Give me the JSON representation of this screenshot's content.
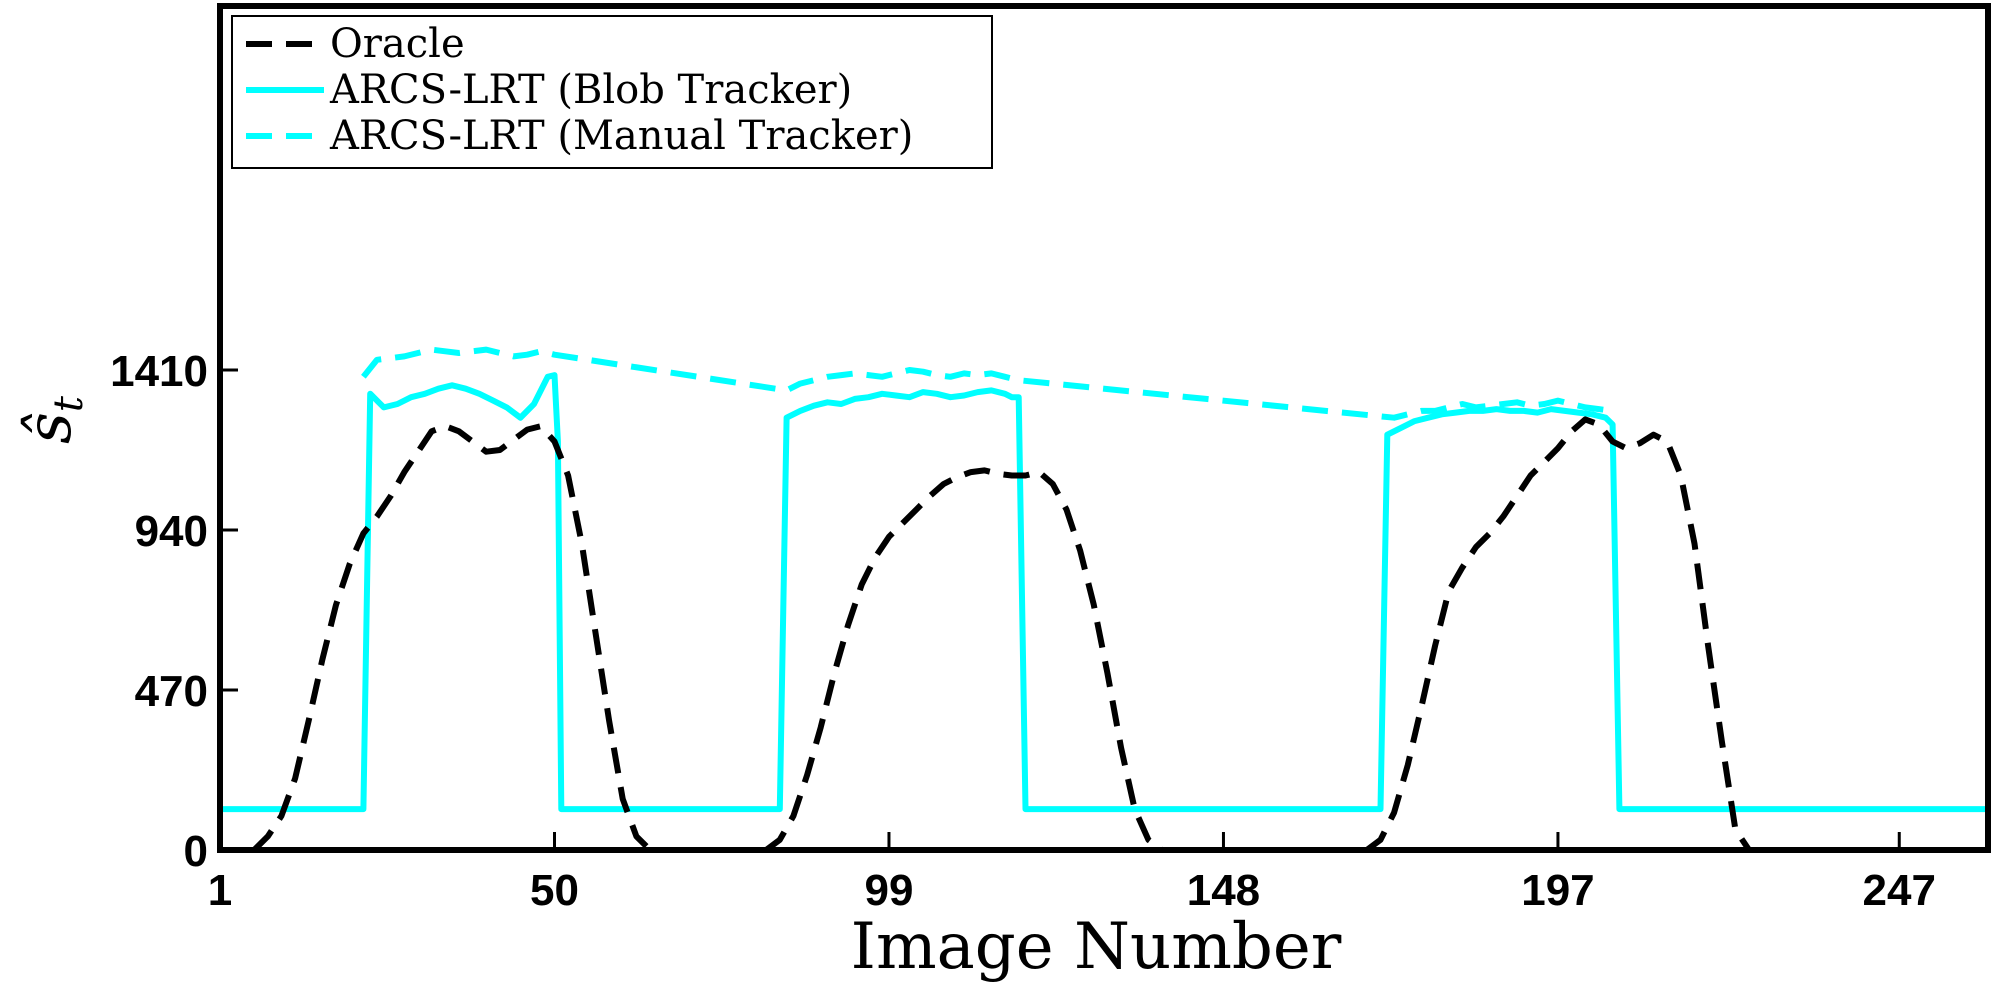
{
  "chart_data": {
    "type": "line",
    "xlabel": "Image Number",
    "ylabel_main": "ŝ",
    "ylabel_sub": "t",
    "xlim": [
      1,
      260
    ],
    "ylim": [
      0,
      1410
    ],
    "x_ticks": [
      1,
      50,
      99,
      148,
      197,
      247
    ],
    "y_ticks": [
      0,
      470,
      940,
      1410
    ],
    "grid": false,
    "legend_position": "top-left",
    "colors": {
      "oracle": "#000000",
      "arcs": "#00FFFF",
      "axis": "#000000"
    },
    "series": [
      {
        "name": "Oracle",
        "style": "dashed",
        "color": "#000000",
        "x": [
          6,
          8,
          10,
          12,
          14,
          16,
          18,
          20,
          22,
          24,
          26,
          28,
          30,
          32,
          34,
          36,
          38,
          40,
          42,
          44,
          46,
          48,
          50,
          52,
          54,
          56,
          58,
          60,
          62,
          64
        ],
        "y": [
          0,
          40,
          100,
          210,
          380,
          560,
          720,
          840,
          930,
          980,
          1040,
          1110,
          1170,
          1230,
          1245,
          1230,
          1200,
          1170,
          1175,
          1205,
          1235,
          1245,
          1200,
          1100,
          900,
          640,
          380,
          150,
          40,
          0
        ]
      },
      {
        "name": "",
        "style": "dashed",
        "color": "#000000",
        "x": [
          81,
          83,
          85,
          87,
          89,
          91,
          93,
          95,
          97,
          99,
          101,
          103,
          105,
          107,
          109,
          111,
          113,
          115,
          117,
          119,
          121,
          123,
          125,
          127,
          129,
          131,
          133,
          135,
          137,
          139
        ],
        "y": [
          0,
          30,
          100,
          220,
          360,
          520,
          660,
          780,
          860,
          920,
          960,
          1000,
          1040,
          1075,
          1095,
          1110,
          1115,
          1105,
          1100,
          1100,
          1110,
          1075,
          1000,
          880,
          720,
          520,
          300,
          120,
          30,
          0
        ]
      },
      {
        "name": "",
        "style": "dashed",
        "color": "#000000",
        "x": [
          169,
          171,
          173,
          175,
          177,
          179,
          181,
          183,
          185,
          187,
          189,
          191,
          193,
          195,
          197,
          199,
          201,
          203,
          205,
          207,
          209,
          211,
          213,
          215,
          217,
          219,
          221,
          223,
          225
        ],
        "y": [
          0,
          30,
          110,
          250,
          420,
          600,
          760,
          830,
          890,
          930,
          980,
          1040,
          1100,
          1140,
          1180,
          1230,
          1265,
          1250,
          1200,
          1180,
          1195,
          1220,
          1200,
          1100,
          900,
          600,
          320,
          60,
          0
        ]
      },
      {
        "name": "ARCS-LRT (Blob Tracker)",
        "style": "solid",
        "color": "#00FFFF",
        "x": [
          1,
          22,
          23,
          25,
          27,
          29,
          31,
          33,
          35,
          37,
          39,
          41,
          43,
          45,
          47,
          49,
          50,
          50.5,
          51,
          83,
          84,
          86,
          88,
          90,
          92,
          94,
          96,
          98,
          100,
          102,
          104,
          106,
          108,
          110,
          112,
          114,
          116,
          117,
          118,
          119,
          171,
          172,
          174,
          176,
          178,
          180,
          182,
          184,
          186,
          188,
          190,
          192,
          194,
          196,
          198,
          200,
          202,
          204,
          205,
          206,
          260
        ],
        "y": [
          120,
          120,
          1340,
          1300,
          1310,
          1330,
          1340,
          1355,
          1365,
          1355,
          1340,
          1320,
          1300,
          1270,
          1310,
          1390,
          1395,
          1200,
          120,
          120,
          1270,
          1290,
          1305,
          1315,
          1310,
          1325,
          1330,
          1340,
          1335,
          1330,
          1345,
          1340,
          1330,
          1335,
          1345,
          1350,
          1340,
          1330,
          1330,
          120,
          120,
          1220,
          1240,
          1260,
          1270,
          1280,
          1285,
          1290,
          1290,
          1295,
          1290,
          1290,
          1285,
          1295,
          1290,
          1285,
          1280,
          1270,
          1250,
          120,
          120
        ]
      },
      {
        "name": "ARCS-LRT (Manual Tracker)",
        "style": "dashed",
        "color": "#00FFFF",
        "x": [
          22,
          24,
          26,
          28,
          30,
          32,
          34,
          36,
          38,
          40,
          42,
          44,
          46,
          48,
          50,
          84,
          86,
          88,
          90,
          92,
          94,
          96,
          98,
          100,
          102,
          104,
          106,
          108,
          110,
          112,
          114,
          116,
          118,
          173,
          175,
          177,
          179,
          181,
          183,
          185,
          187,
          189,
          191,
          193,
          195,
          197,
          199,
          201,
          203,
          205
        ],
        "y": [
          1390,
          1440,
          1445,
          1450,
          1460,
          1470,
          1465,
          1460,
          1465,
          1470,
          1460,
          1450,
          1455,
          1465,
          1455,
          1350,
          1370,
          1380,
          1390,
          1395,
          1400,
          1395,
          1390,
          1400,
          1410,
          1405,
          1395,
          1390,
          1400,
          1395,
          1400,
          1390,
          1380,
          1270,
          1280,
          1290,
          1290,
          1300,
          1310,
          1300,
          1305,
          1310,
          1315,
          1305,
          1310,
          1320,
          1310,
          1300,
          1295,
          1290
        ]
      }
    ]
  }
}
